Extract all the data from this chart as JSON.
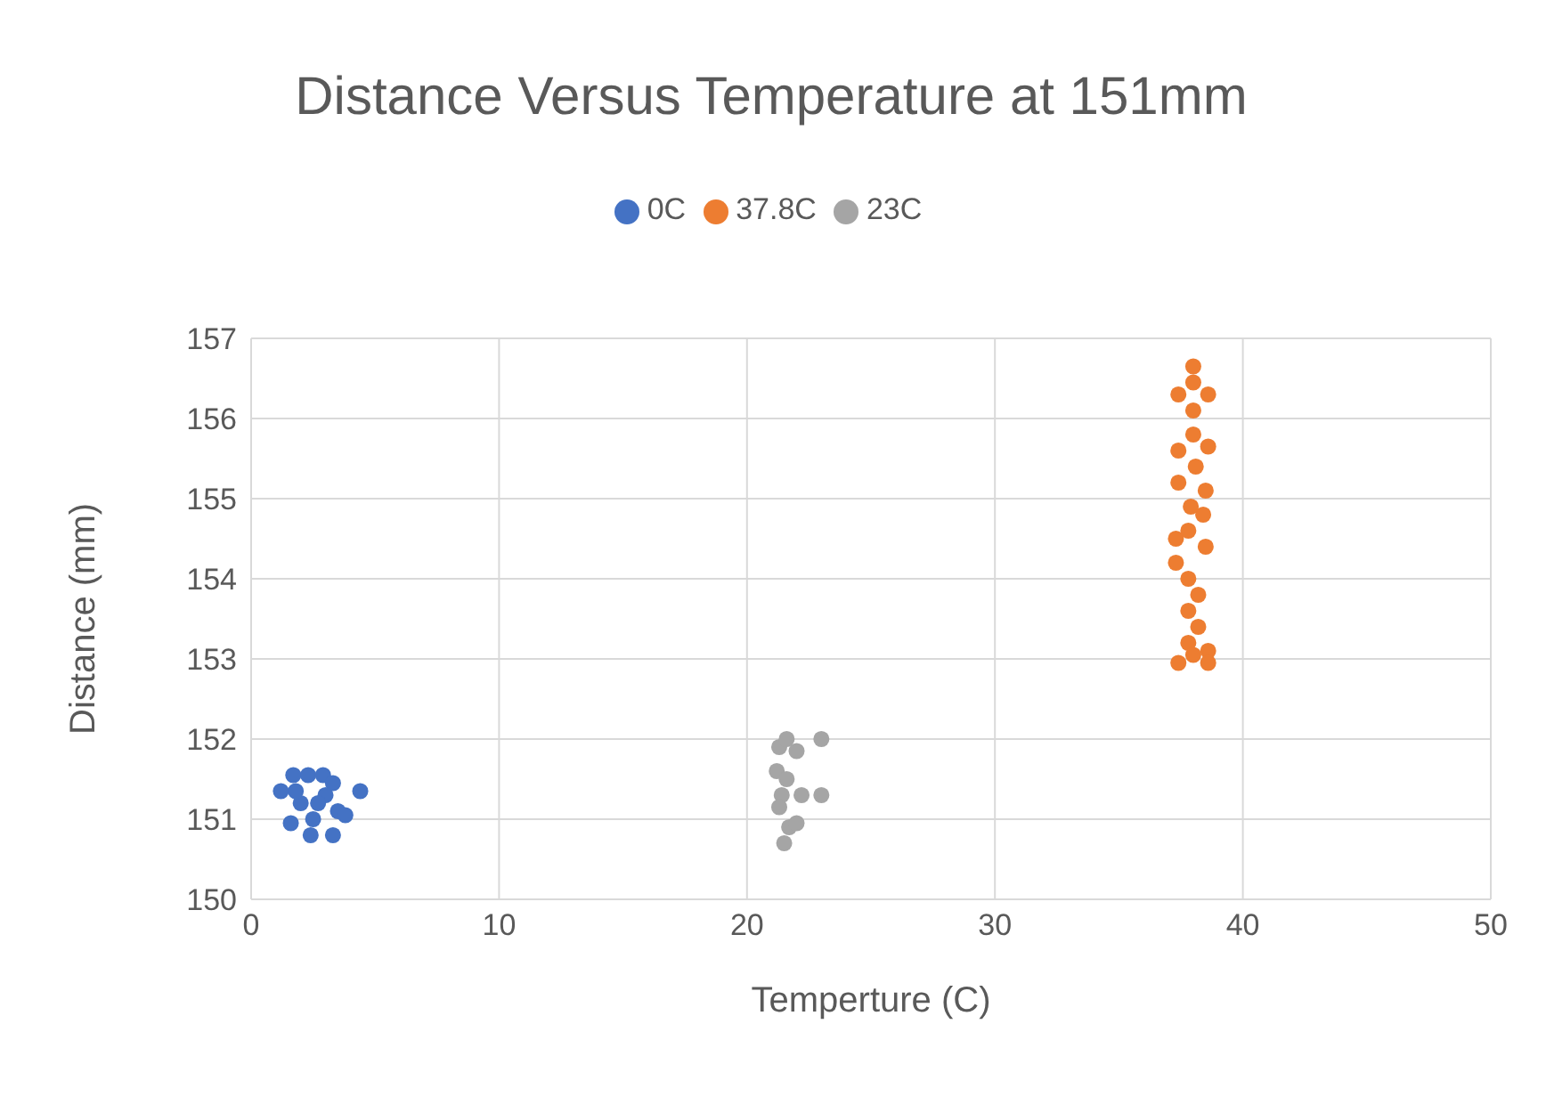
{
  "chart_data": {
    "type": "scatter",
    "title": "Distance Versus Temperature at 151mm",
    "xlabel": "Temperture (C)",
    "ylabel": "Distance (mm)",
    "xlim": [
      0,
      50
    ],
    "xticks": [
      0,
      10,
      20,
      30,
      40,
      50
    ],
    "ylim": [
      150,
      157
    ],
    "yticks": [
      150,
      151,
      152,
      153,
      154,
      155,
      156,
      157
    ],
    "grid": true,
    "legend": "top",
    "marker": "circle",
    "series": [
      {
        "name": "0C",
        "color": "#4472c4",
        "x": [
          1.2,
          1.7,
          2.3,
          2.9,
          3.3,
          4.4,
          1.6,
          2.0,
          2.5,
          3.0,
          3.5,
          3.8,
          2.4,
          3.3,
          1.8,
          2.7
        ],
        "values": [
          151.35,
          151.55,
          151.55,
          151.55,
          151.45,
          151.35,
          150.95,
          151.2,
          151.0,
          151.3,
          151.1,
          151.05,
          150.8,
          150.8,
          151.35,
          151.2
        ]
      },
      {
        "name": "37.8C",
        "color": "#ed7d31",
        "x": [
          38.0,
          38.0,
          37.4,
          38.6,
          38.0,
          37.4,
          38.6,
          38.0,
          37.4,
          38.5,
          38.1,
          38.4,
          37.9,
          37.3,
          37.3,
          38.5,
          37.8,
          37.8,
          38.2,
          37.8,
          38.2,
          37.8,
          38.0,
          38.6,
          38.6,
          37.4
        ],
        "values": [
          156.65,
          156.45,
          156.3,
          156.3,
          156.1,
          155.6,
          155.65,
          155.8,
          155.2,
          155.1,
          155.4,
          154.8,
          154.9,
          154.5,
          154.2,
          154.4,
          154.6,
          154.0,
          153.8,
          153.6,
          153.4,
          153.2,
          153.05,
          153.1,
          152.95,
          152.95
        ]
      },
      {
        "name": "23C",
        "color": "#a5a5a5",
        "x": [
          21.3,
          21.6,
          22.0,
          23.0,
          21.2,
          21.4,
          21.3,
          23.0,
          22.2,
          21.7,
          21.5,
          22.0,
          21.6
        ],
        "values": [
          151.9,
          152.0,
          151.85,
          152.0,
          151.6,
          151.3,
          151.15,
          151.3,
          151.3,
          150.9,
          150.7,
          150.95,
          151.5
        ]
      }
    ]
  }
}
